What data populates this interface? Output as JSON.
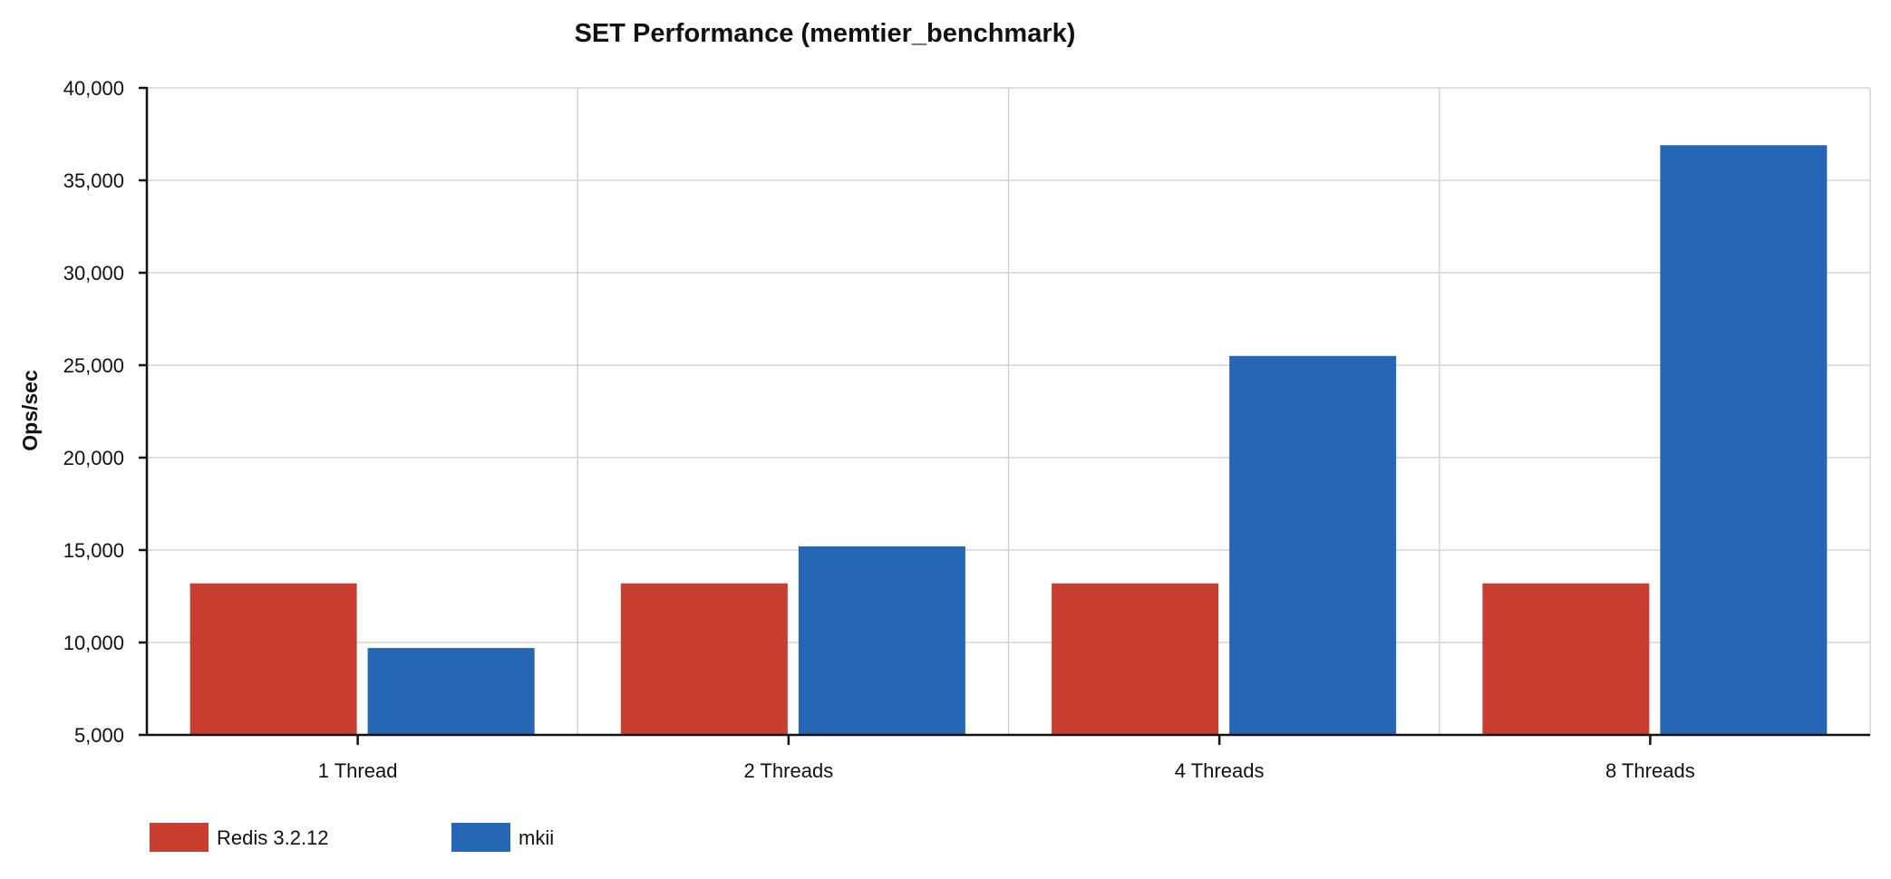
{
  "chart_data": {
    "type": "bar",
    "title": "SET Performance (memtier_benchmark)",
    "xlabel": "",
    "ylabel": "Ops/sec",
    "ylim": [
      5000,
      40000
    ],
    "yticks": [
      5000,
      10000,
      15000,
      20000,
      25000,
      30000,
      35000,
      40000
    ],
    "ytick_labels": [
      "5,000",
      "10,000",
      "15,000",
      "20,000",
      "25,000",
      "30,000",
      "35,000",
      "40,000"
    ],
    "categories": [
      "1 Thread",
      "2 Threads",
      "4 Threads",
      "8 Threads"
    ],
    "series": [
      {
        "name": "Redis 3.2.12",
        "color": "#c83e30",
        "values": [
          13200,
          13200,
          13200,
          13200
        ]
      },
      {
        "name": "mkii",
        "color": "#2567b4",
        "values": [
          9700,
          15200,
          25500,
          36900
        ]
      }
    ],
    "grid": true,
    "legend": "bottom-left"
  }
}
